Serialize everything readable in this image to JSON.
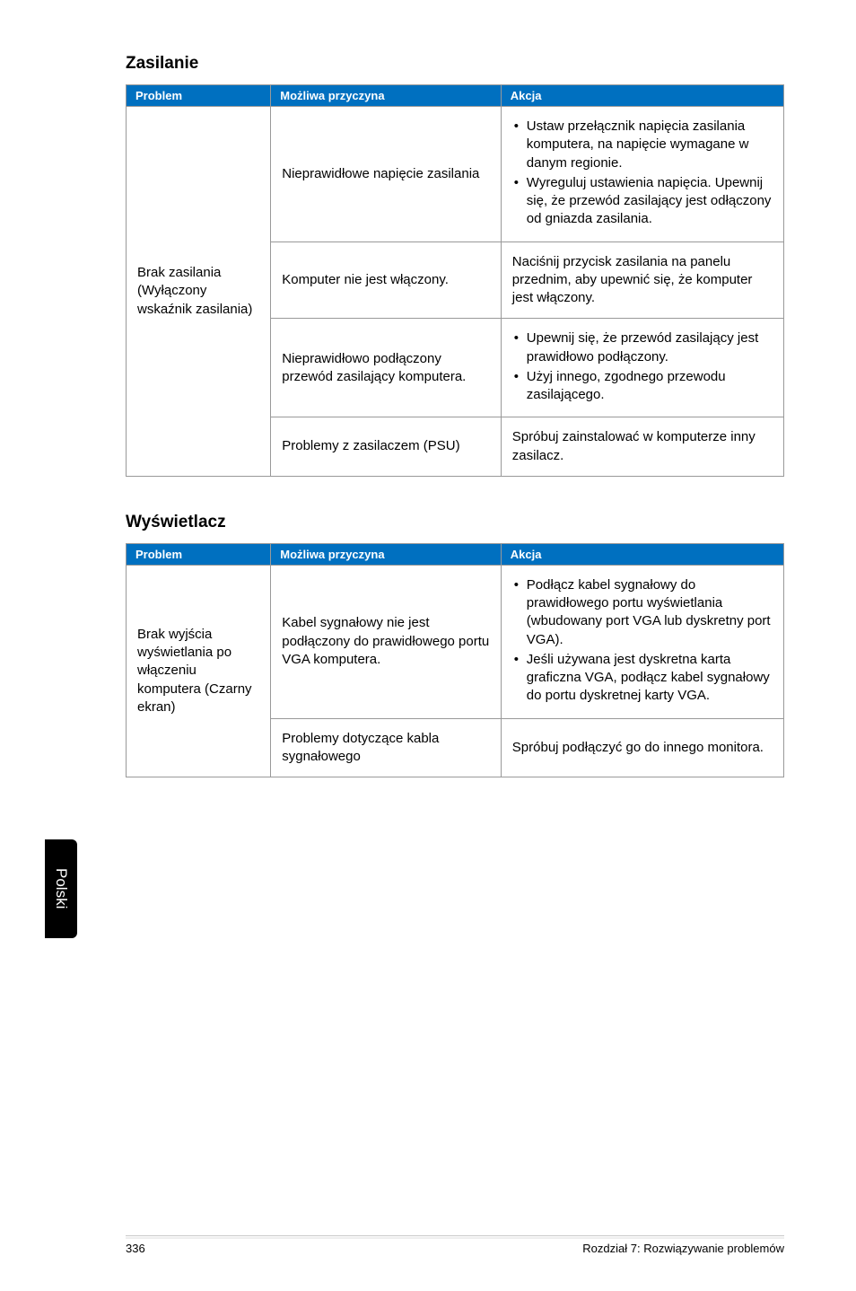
{
  "section1": {
    "title": "Zasilanie",
    "header": {
      "c1": "Problem",
      "c2": "Możliwa przyczyna",
      "c3": "Akcja"
    },
    "col1": "Brak zasilania (Wyłączony wskaźnik zasilania)",
    "rows": [
      {
        "cause": "Nieprawidłowe napięcie zasilania",
        "action_items": [
          "Ustaw przełącznik napięcia zasilania komputera, na napięcie wymagane w danym regionie.",
          "Wyreguluj ustawienia napięcia. Upewnij się, że przewód zasilający jest odłączony od gniazda zasilania."
        ]
      },
      {
        "cause": "Komputer nie jest włączony.",
        "action_text": "Naciśnij przycisk zasilania na panelu przednim, aby upewnić się, że komputer jest włączony."
      },
      {
        "cause": "Nieprawidłowo podłączony przewód zasilający komputera.",
        "action_items": [
          "Upewnij się, że przewód zasilający jest prawidłowo podłączony.",
          "Użyj innego, zgodnego przewodu zasilającego."
        ]
      },
      {
        "cause": "Problemy z zasilaczem (PSU)",
        "action_text": "Spróbuj zainstalować w komputerze inny zasilacz."
      }
    ]
  },
  "section2": {
    "title": "Wyświetlacz",
    "header": {
      "c1": "Problem",
      "c2": "Możliwa przyczyna",
      "c3": "Akcja"
    },
    "col1": "Brak wyjścia wyświetlania po włączeniu komputera (Czarny ekran)",
    "rows": [
      {
        "cause": "Kabel sygnałowy nie jest podłączony do prawidłowego portu VGA komputera.",
        "action_items": [
          "Podłącz kabel sygnałowy do prawidłowego portu wyświetlania (wbudowany port VGA lub dyskretny port VGA).",
          "Jeśli używana jest dyskretna karta graficzna VGA, podłącz kabel sygnałowy do portu dyskretnej karty VGA."
        ]
      },
      {
        "cause": "Problemy dotyczące kabla sygnałowego",
        "action_text": "Spróbuj podłączyć go do innego monitora."
      }
    ]
  },
  "sidetab": "Polski",
  "footer": {
    "page": "336",
    "chapter": "Rozdział 7: Rozwiązywanie problemów"
  },
  "style": {
    "header_bg": "#0070c0",
    "header_fg": "#ffffff",
    "border": "#999999",
    "body_font_size": 15,
    "header_font_size": 13,
    "title_font_size": 19
  }
}
